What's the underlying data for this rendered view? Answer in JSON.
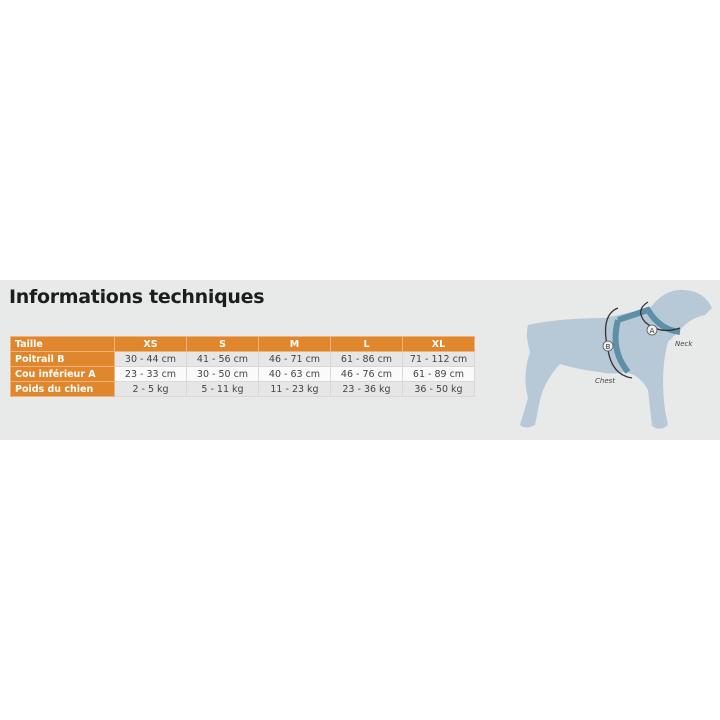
{
  "title": "Informations techniques",
  "table": {
    "headers": [
      "Taille",
      "XS",
      "S",
      "M",
      "L",
      "XL"
    ],
    "rows": [
      {
        "label": "Poitrail B",
        "values": [
          "30 - 44 cm",
          "41 - 56 cm",
          "46 - 71 cm",
          "61 - 86 cm",
          "71 - 112 cm"
        ]
      },
      {
        "label": "Cou inférieur A",
        "values": [
          "23 - 33 cm",
          "30 - 50 cm",
          "40 - 63 cm",
          "46 - 76 cm",
          "61 - 89 cm"
        ]
      },
      {
        "label": "Poids du chien",
        "values": [
          "2 - 5 kg",
          "5 - 11 kg",
          "11 - 23 kg",
          "23 - 36 kg",
          "36 - 50 kg"
        ]
      }
    ]
  },
  "diagram": {
    "chest_label": "Chest",
    "neck_label": "Neck",
    "marker_a": "A",
    "marker_b": "B"
  },
  "colors": {
    "header": "#e0872e",
    "dog": "#b7c9d6",
    "harness": "#5d8fa6"
  }
}
